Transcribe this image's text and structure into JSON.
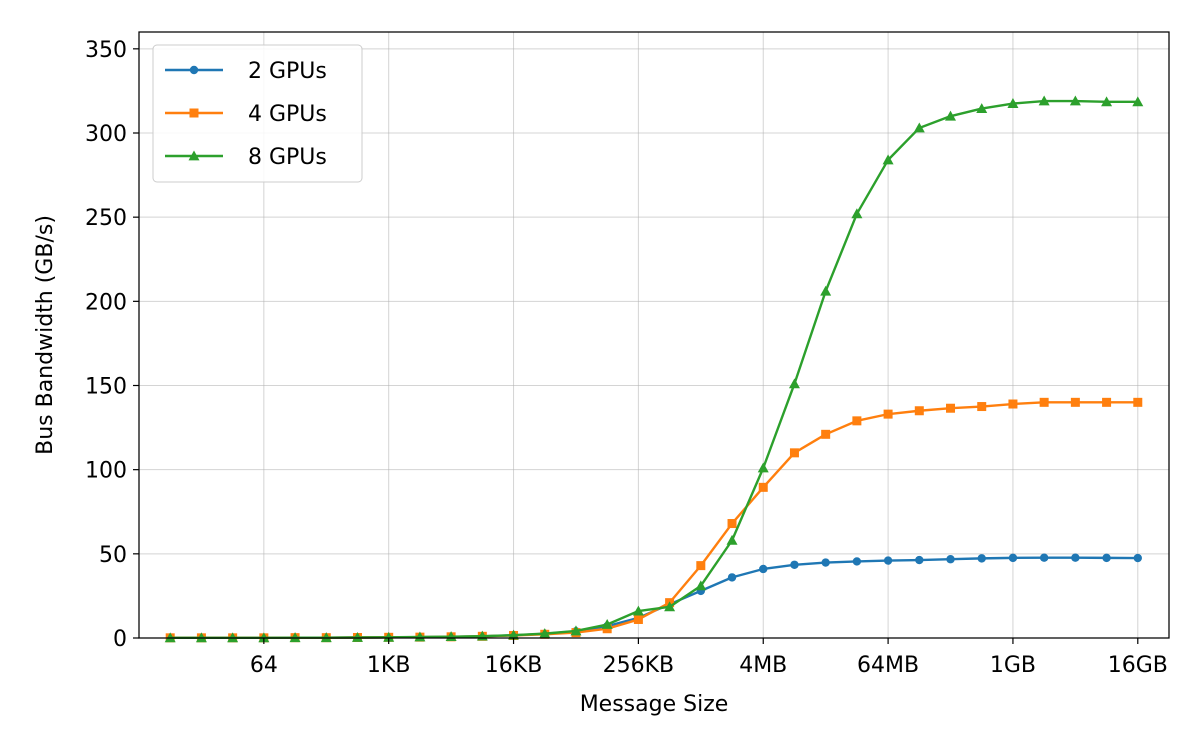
{
  "chart_data": {
    "type": "line",
    "xlabel": "Message Size",
    "ylabel": "Bus Bandwidth (GB/s)",
    "x_scale": "log2",
    "x_unit": "bytes",
    "x_ticks": [
      64,
      1024,
      16384,
      262144,
      4194304,
      67108864,
      1073741824,
      17179869184
    ],
    "x_tick_labels": [
      "64",
      "1KB",
      "16KB",
      "256KB",
      "4MB",
      "64MB",
      "1GB",
      "16GB"
    ],
    "xlim": [
      4,
      34359738368
    ],
    "ylim": [
      0,
      360
    ],
    "y_ticks": [
      0,
      50,
      100,
      150,
      200,
      250,
      300,
      350
    ],
    "grid": true,
    "legend_position": "top-left",
    "x": [
      8,
      16,
      32,
      64,
      128,
      256,
      512,
      1024,
      2048,
      4096,
      8192,
      16384,
      32768,
      65536,
      131072,
      262144,
      524288,
      1048576,
      2097152,
      4194304,
      8388608,
      16777216,
      33554432,
      67108864,
      134217728,
      268435456,
      536870912,
      1073741824,
      2147483648,
      4294967296,
      8589934592,
      17179869184
    ],
    "series": [
      {
        "name": "2 GPUs",
        "color": "#1f77b4",
        "marker": "circle",
        "values": [
          0.1,
          0.1,
          0.1,
          0.1,
          0.2,
          0.2,
          0.3,
          0.4,
          0.5,
          0.7,
          1.0,
          1.6,
          2.5,
          4.0,
          7.0,
          12.0,
          20.0,
          28.0,
          36.0,
          41.0,
          43.5,
          44.8,
          45.5,
          46.0,
          46.3,
          46.8,
          47.3,
          47.6,
          47.7,
          47.7,
          47.6,
          47.5
        ]
      },
      {
        "name": "4 GPUs",
        "color": "#ff7f0e",
        "marker": "square",
        "values": [
          0.1,
          0.1,
          0.1,
          0.1,
          0.2,
          0.2,
          0.3,
          0.4,
          0.5,
          0.7,
          1.0,
          1.5,
          2.2,
          3.2,
          5.5,
          11.0,
          21.0,
          43.0,
          68.0,
          89.5,
          110.0,
          121.0,
          129.0,
          133.0,
          135.0,
          136.5,
          137.5,
          139.0,
          140.0,
          140.0,
          140.0,
          140.0
        ]
      },
      {
        "name": "8 GPUs",
        "color": "#2ca02c",
        "marker": "triangle",
        "values": [
          0.1,
          0.1,
          0.1,
          0.1,
          0.2,
          0.2,
          0.3,
          0.4,
          0.6,
          0.8,
          1.1,
          1.7,
          2.6,
          4.2,
          8.0,
          16.0,
          18.5,
          31.0,
          58.0,
          101.0,
          151.0,
          206.0,
          252.0,
          284.0,
          303.0,
          310.0,
          314.5,
          317.5,
          319.0,
          319.0,
          318.5,
          318.5
        ]
      }
    ]
  }
}
